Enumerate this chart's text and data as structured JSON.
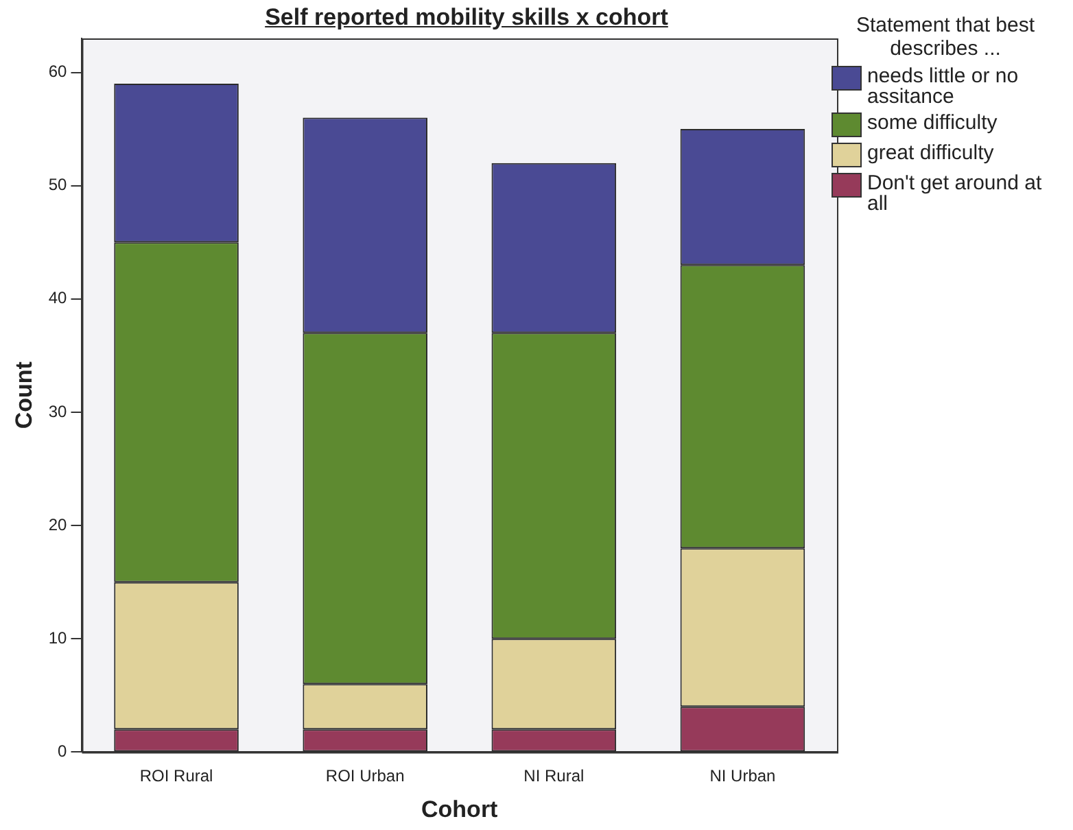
{
  "chart_data": {
    "type": "bar",
    "title": "Self reported mobility skills x cohort",
    "xlabel": "Cohort",
    "ylabel": "Count",
    "legend_title": "Statement that best describes ...",
    "categories": [
      "ROI Rural",
      "ROI Urban",
      "NI Rural",
      "NI Urban"
    ],
    "stacked": true,
    "ylim": [
      0,
      63
    ],
    "yticks": [
      0,
      10,
      20,
      30,
      40,
      50,
      60
    ],
    "grid": false,
    "legend": "right",
    "series": [
      {
        "name": "Don't get around at all",
        "color": "#963a5a",
        "values": [
          2,
          2,
          2,
          4
        ]
      },
      {
        "name": "great difficulty",
        "color": "#e0d29a",
        "values": [
          13,
          4,
          8,
          14
        ]
      },
      {
        "name": "some difficulty",
        "color": "#5e8a30",
        "values": [
          30,
          31,
          27,
          25
        ]
      },
      {
        "name": "needs little or no assitance",
        "color": "#4a4a94",
        "values": [
          14,
          19,
          15,
          12
        ]
      }
    ]
  }
}
